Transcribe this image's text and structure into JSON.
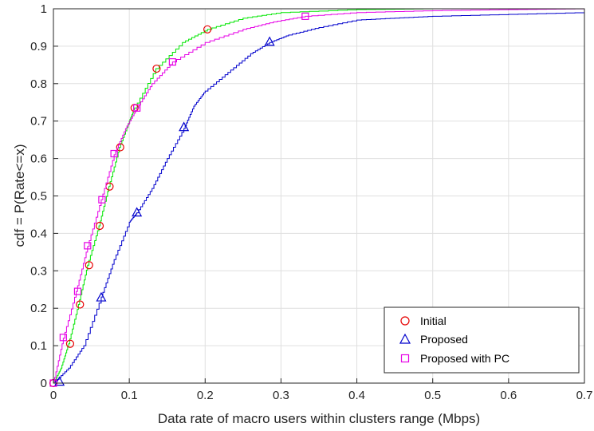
{
  "chart_data": {
    "type": "line",
    "xlabel": "Data rate of macro users within clusters range (Mbps)",
    "ylabel": "cdf = P(Rate<=x)",
    "xlim": [
      0,
      0.7
    ],
    "ylim": [
      0,
      1
    ],
    "x_ticks": [
      "0",
      "0.1",
      "0.2",
      "0.3",
      "0.4",
      "0.5",
      "0.6",
      "0.7"
    ],
    "y_ticks": [
      "0",
      "0.1",
      "0.2",
      "0.3",
      "0.4",
      "0.5",
      "0.6",
      "0.7",
      "0.8",
      "0.9",
      "1"
    ],
    "grid": true,
    "legend_position": "bottom-right",
    "series": [
      {
        "name": "Initial",
        "color": "#00e600",
        "marker_color": "#e60000",
        "marker": "circle",
        "x": [
          0,
          0.01,
          0.02,
          0.033,
          0.045,
          0.06,
          0.073,
          0.087,
          0.1,
          0.107,
          0.135,
          0.17,
          0.203,
          0.25,
          0.3,
          0.4,
          0.5,
          0.6,
          0.7
        ],
        "y": [
          0,
          0.04,
          0.105,
          0.21,
          0.315,
          0.42,
          0.525,
          0.63,
          0.7,
          0.735,
          0.84,
          0.91,
          0.945,
          0.975,
          0.99,
          0.998,
          1,
          1,
          1
        ],
        "marker_x": [
          0,
          0.022,
          0.035,
          0.047,
          0.061,
          0.074,
          0.088,
          0.107,
          0.136,
          0.203
        ],
        "marker_y": [
          0,
          0.105,
          0.21,
          0.315,
          0.42,
          0.525,
          0.63,
          0.735,
          0.84,
          0.945
        ]
      },
      {
        "name": "Proposed",
        "color": "#0000cc",
        "marker_color": "#0000cc",
        "marker": "triangle",
        "x": [
          0,
          0.02,
          0.04,
          0.063,
          0.08,
          0.1,
          0.11,
          0.13,
          0.15,
          0.172,
          0.185,
          0.2,
          0.23,
          0.26,
          0.285,
          0.31,
          0.35,
          0.4,
          0.45,
          0.5,
          0.6,
          0.7
        ],
        "y": [
          0,
          0.04,
          0.1,
          0.23,
          0.33,
          0.43,
          0.455,
          0.52,
          0.6,
          0.68,
          0.74,
          0.78,
          0.83,
          0.88,
          0.91,
          0.93,
          0.95,
          0.97,
          0.975,
          0.98,
          0.985,
          0.99
        ],
        "marker_x": [
          0.008,
          0.063,
          0.11,
          0.172,
          0.285
        ],
        "marker_y": [
          0.003,
          0.228,
          0.455,
          0.683,
          0.911
        ]
      },
      {
        "name": "Proposed with PC",
        "color": "#e600e6",
        "marker_color": "#e600e6",
        "marker": "square",
        "x": [
          0,
          0.013,
          0.03,
          0.045,
          0.063,
          0.08,
          0.095,
          0.11,
          0.13,
          0.157,
          0.2,
          0.25,
          0.29,
          0.332,
          0.4,
          0.5,
          0.6,
          0.7
        ],
        "y": [
          0,
          0.12,
          0.245,
          0.365,
          0.49,
          0.61,
          0.68,
          0.735,
          0.8,
          0.858,
          0.91,
          0.945,
          0.965,
          0.98,
          0.99,
          0.995,
          0.998,
          1
        ],
        "marker_x": [
          0,
          0.013,
          0.032,
          0.045,
          0.064,
          0.08,
          0.11,
          0.157,
          0.332
        ],
        "marker_y": [
          0,
          0.122,
          0.245,
          0.367,
          0.49,
          0.613,
          0.735,
          0.858,
          0.98
        ]
      }
    ]
  }
}
